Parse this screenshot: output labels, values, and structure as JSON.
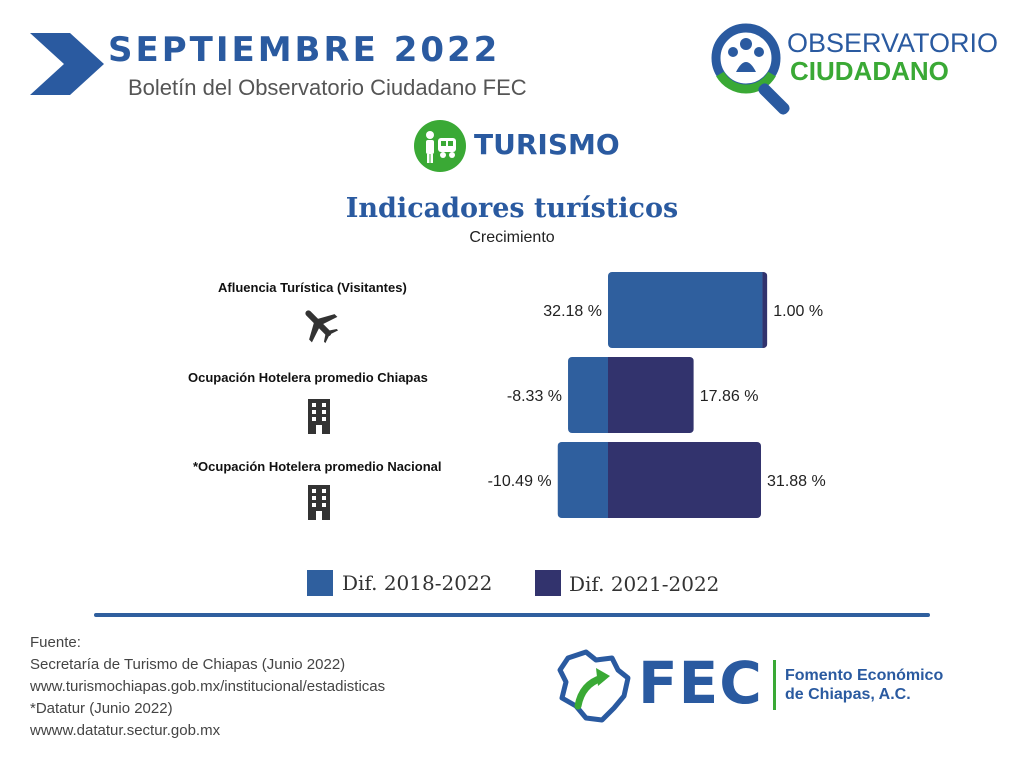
{
  "header": {
    "month": "SEPTIEMBRE  2022",
    "subtitle": "Boletín del Observatorio Ciudadano FEC"
  },
  "observatorio_logo": {
    "line1": "OBSERVATORIO",
    "line2": "CIUDADANO",
    "icon": "magnifier-people-icon"
  },
  "section": {
    "label": "TURISMO",
    "icon": "tourist-icon"
  },
  "colors": {
    "brand_blue": "#2a5aa0",
    "brand_green": "#3aa935",
    "series_2018": "#2f5f9e",
    "series_2021": "#32336d"
  },
  "chart_data": {
    "type": "bar",
    "orientation": "horizontal-diverging",
    "title": "Indicadores turísticos",
    "subtitle": "Crecimiento",
    "categories": [
      "Afluencia Turística (Visitantes)",
      "Ocupación Hotelera promedio Chiapas",
      "*Ocupación Hotelera promedio Nacional"
    ],
    "category_icons": [
      "airplane-icon",
      "building-icon",
      "building-icon"
    ],
    "series": [
      {
        "name": "Dif. 2018-2022",
        "values": [
          32.18,
          -8.33,
          -10.49
        ],
        "labels": [
          "32.18 %",
          "-8.33 %",
          "-10.49 %"
        ],
        "color": "#2f5f9e"
      },
      {
        "name": "Dif. 2021-2022",
        "values": [
          1.0,
          17.86,
          31.88
        ],
        "labels": [
          "1.00 %",
          "17.86 %",
          "31.88 %"
        ],
        "color": "#32336d"
      }
    ],
    "legend_position": "bottom",
    "grid": false
  },
  "source": {
    "lines": [
      "Fuente:",
      "Secretaría de Turismo de Chiapas (Junio 2022)",
      "www.turismochiapas.gob.mx/institucional/estadisticas",
      "*Datatur (Junio 2022)",
      "wwww.datatur.sectur.gob.mx"
    ]
  },
  "fec_logo": {
    "acronym": "FEC",
    "line1": "Fomento Económico",
    "line2": "de Chiapas, A.C.",
    "icon": "chiapas-map-icon"
  }
}
